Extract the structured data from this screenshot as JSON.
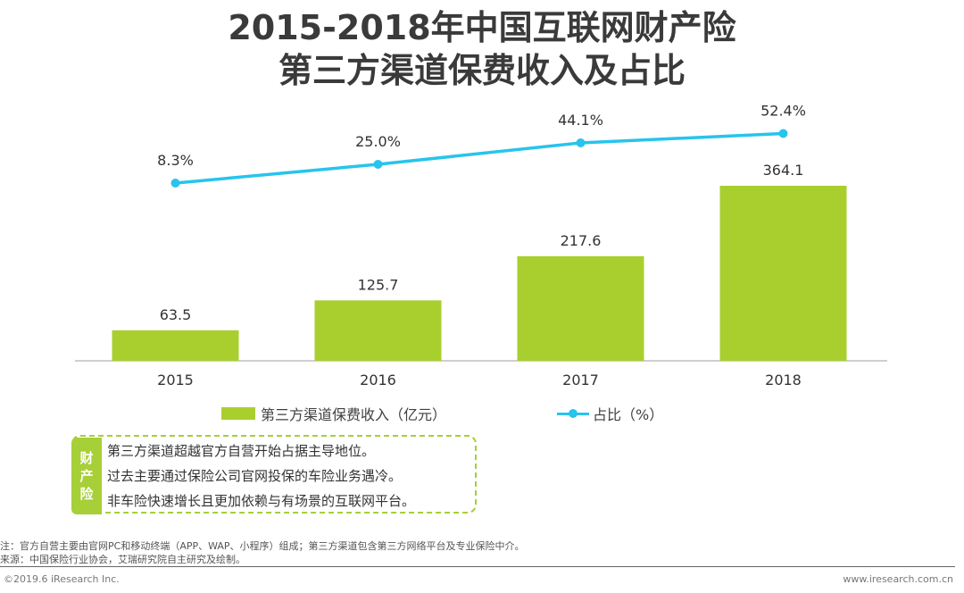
{
  "header": {
    "title_line1": "2015-2018年中国互联网财产险",
    "title_line2": "第三方渠道保费收入及占比"
  },
  "colors": {
    "bar": "#a9cf2f",
    "line": "#27c4ec",
    "title": "#3a3a3a",
    "tag": "#a6cf38",
    "axis": "#bfbfbf"
  },
  "chart_data": {
    "type": "bar",
    "categories": [
      "2015",
      "2016",
      "2017",
      "2018"
    ],
    "series": [
      {
        "name": "第三方渠道保费收入（亿元）",
        "type": "bar",
        "values": [
          63.5,
          125.7,
          217.6,
          364.1
        ],
        "labels": [
          "63.5",
          "125.7",
          "217.6",
          "364.1"
        ]
      },
      {
        "name": "占比（%）",
        "type": "line",
        "values": [
          8.3,
          25.0,
          44.1,
          52.4
        ],
        "labels": [
          "8.3%",
          "25.0%",
          "44.1%",
          "52.4%"
        ]
      }
    ],
    "legend_position": "bottom",
    "grid": false
  },
  "legend": {
    "bar_label": "第三方渠道保费收入（亿元）",
    "line_label": "占比（%）"
  },
  "callout": {
    "tag_chars": [
      "财",
      "产",
      "险"
    ],
    "lines": [
      "第三方渠道超越官方自营开始占据主导地位。",
      "过去主要通过保险公司官网投保的车险业务遇冷。",
      "非车险快速增长且更加依赖与有场景的互联网平台。"
    ]
  },
  "footer": {
    "note": "注：官方自营主要由官网PC和移动终端（APP、WAP、小程序）组成；第三方渠道包含第三方网络平台及专业保险中介。",
    "source": "来源：中国保险行业协会，艾瑞研究院自主研究及绘制。",
    "copyright": "©2019.6 iResearch Inc.",
    "website": "www.iresearch.com.cn"
  }
}
